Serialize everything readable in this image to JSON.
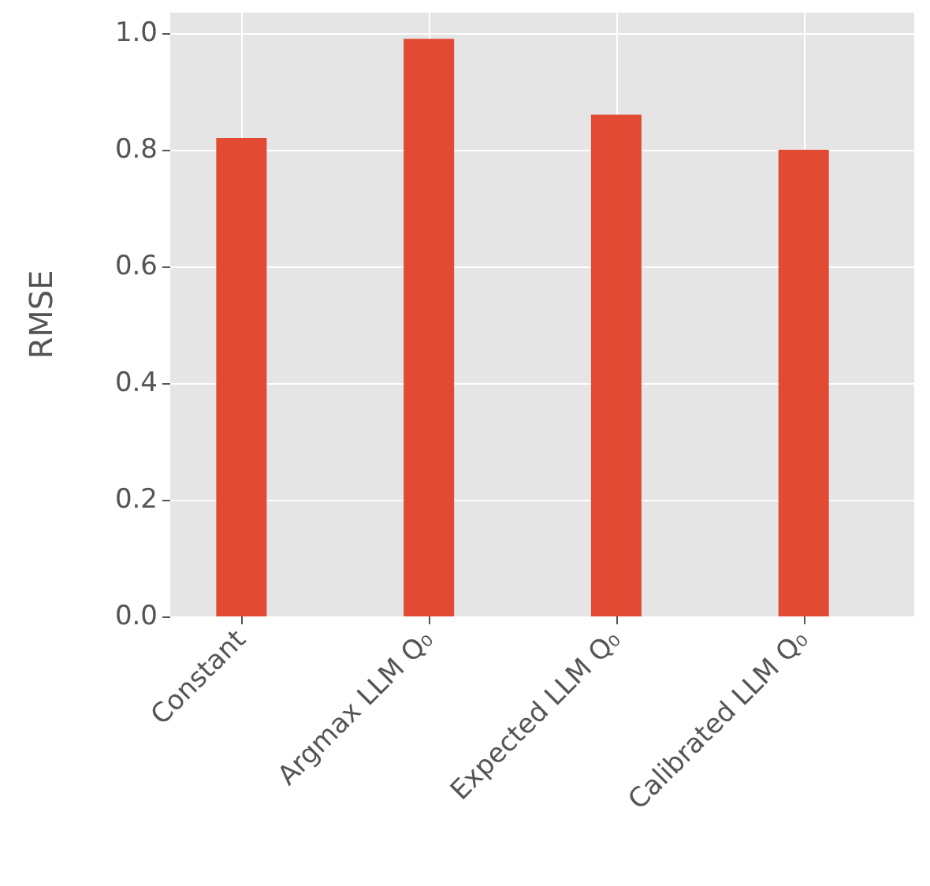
{
  "chart_data": {
    "type": "bar",
    "ylabel": "RMSE",
    "categories": [
      "Constant",
      "Argmax LLM Q₀",
      "Expected LLM Q₀",
      "Calibrated LLM Q₀"
    ],
    "values": [
      0.82,
      0.99,
      0.86,
      0.8
    ],
    "color": "#e24a33",
    "ylim": [
      0,
      1.035
    ],
    "yticks": [
      {
        "value": 0,
        "label": "0.0"
      },
      0.2,
      0.4,
      0.6,
      0.8,
      {
        "value": 1,
        "label": "1.0"
      }
    ],
    "grid": true
  }
}
